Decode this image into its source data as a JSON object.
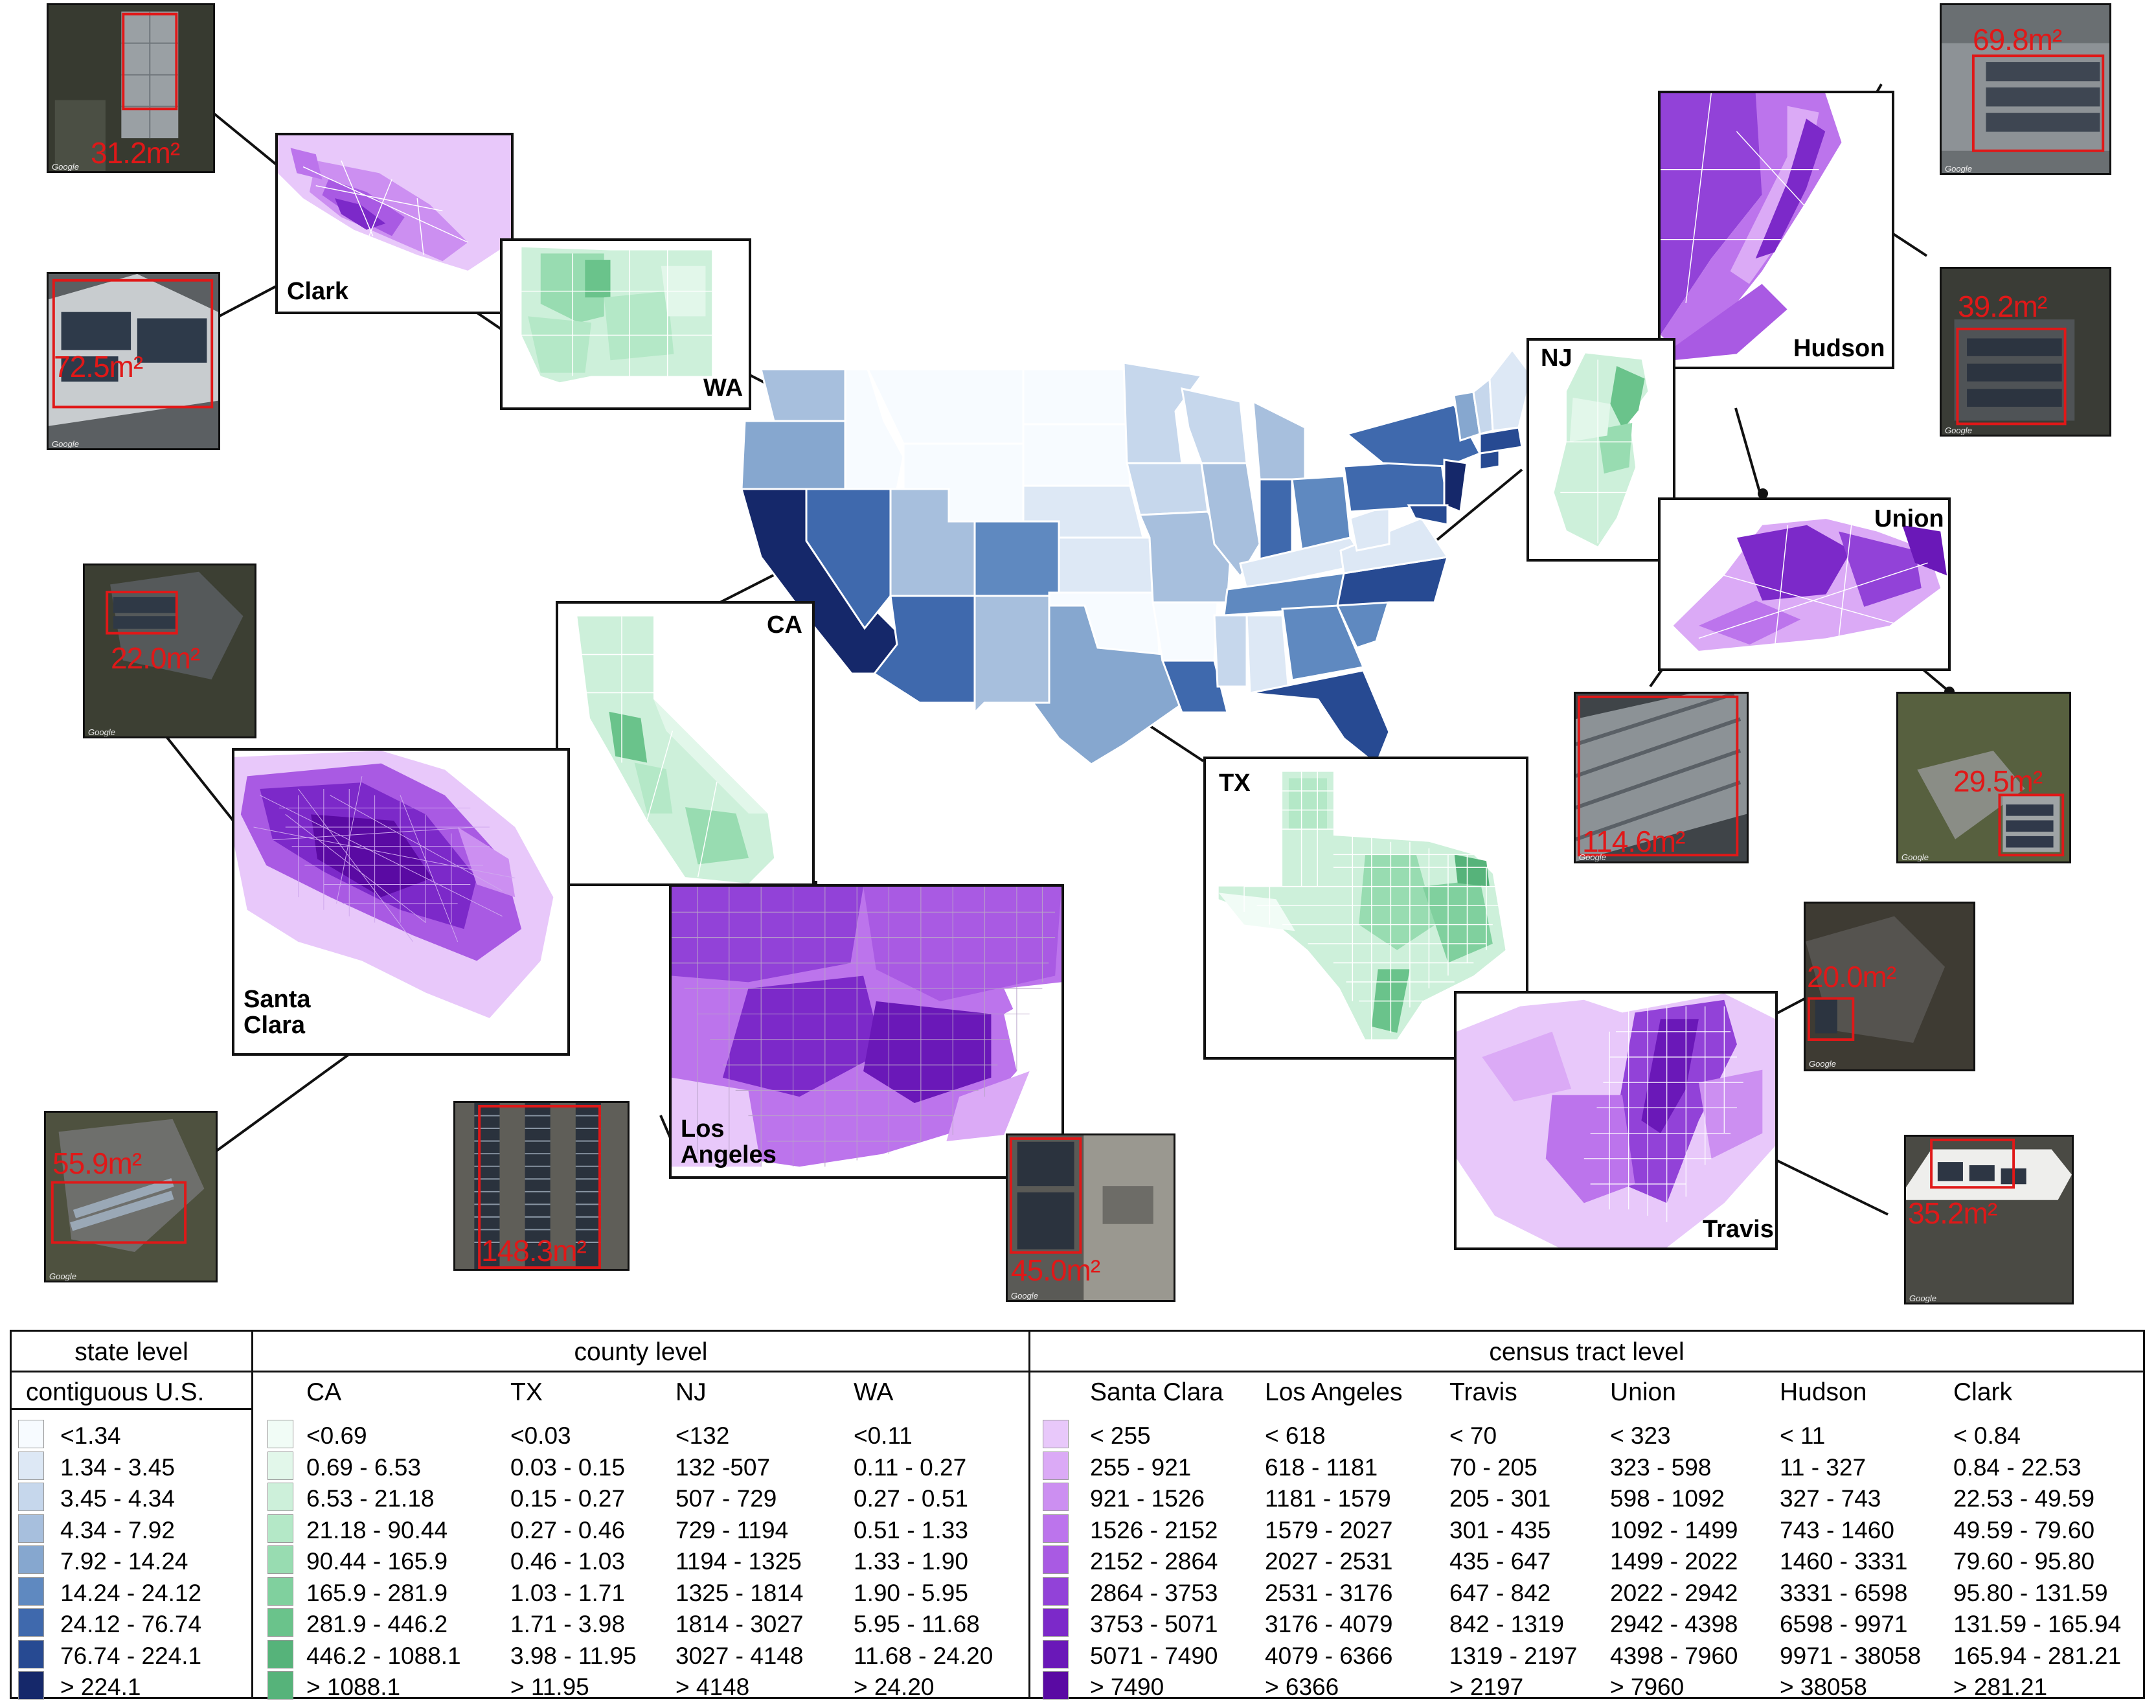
{
  "colors": {
    "state_scale": [
      "#f7fbff",
      "#dde8f5",
      "#c6d7ec",
      "#a7bfdd",
      "#86a7cf",
      "#5f89c0",
      "#3f69ad",
      "#274a92",
      "#15286a"
    ],
    "county_scale": [
      "#f1fcf6",
      "#e2f7ea",
      "#cdf0da",
      "#b4e8c7",
      "#98dcb1",
      "#80d09e",
      "#6ac38b",
      "#56b37a"
    ],
    "tract_scale": [
      "#e8c8fa",
      "#dbaaf6",
      "#cc8ff1",
      "#bc74ec",
      "#a95ae3",
      "#9242d8",
      "#7c29c9",
      "#6a18b8",
      "#5a0aa3"
    ],
    "area_label": "#e01818"
  },
  "map": {
    "insets": {
      "clark": "Clark",
      "wa": "WA",
      "hudson": "Hudson",
      "nj": "NJ",
      "union": "Union",
      "ca": "CA",
      "santa_clara": "Santa Clara",
      "los_angeles": "Los Angeles",
      "tx": "TX",
      "travis": "Travis"
    },
    "satellite_areas": {
      "clark_1": "31.2m²",
      "clark_2": "72.5m²",
      "hudson_1": "69.8m²",
      "hudson_2": "39.2m²",
      "union_1": "114.6m²",
      "union_2": "29.5m²",
      "santa_clara_1": "22.0m²",
      "santa_clara_2": "55.9m²",
      "los_angeles_1": "148.3m²",
      "los_angeles_2": "45.0m²",
      "travis_1": "20.0m²",
      "travis_2": "35.2m²"
    },
    "watermark": "Google"
  },
  "legend": {
    "state": {
      "header": "state level",
      "column": "contiguous U.S.",
      "ranges": [
        "<1.34",
        "1.34 - 3.45",
        "3.45 - 4.34",
        "4.34 - 7.92",
        "7.92 - 14.24",
        "14.24 - 24.12",
        "24.12 - 76.74",
        "76.74 - 224.1",
        "> 224.1"
      ]
    },
    "county": {
      "header": "county level",
      "columns": [
        {
          "name": "CA",
          "ranges": [
            "<0.69",
            "0.69 - 6.53",
            "6.53 - 21.18",
            "21.18 - 90.44",
            "90.44 - 165.9",
            "165.9 - 281.9",
            "281.9 - 446.2",
            "446.2 - 1088.1",
            "> 1088.1"
          ]
        },
        {
          "name": "TX",
          "ranges": [
            "<0.03",
            "0.03 - 0.15",
            "0.15 - 0.27",
            "0.27 - 0.46",
            "0.46 - 1.03",
            "1.03 - 1.71",
            "1.71 - 3.98",
            "3.98 - 11.95",
            "> 11.95"
          ]
        },
        {
          "name": "NJ",
          "ranges": [
            "<132",
            "132 -507",
            "507 - 729",
            "729 - 1194",
            "1194 - 1325",
            "1325 - 1814",
            "1814 - 3027",
            "3027 - 4148",
            "> 4148"
          ]
        },
        {
          "name": "WA",
          "ranges": [
            "<0.11",
            "0.11 - 0.27",
            "0.27 - 0.51",
            "0.51 - 1.33",
            "1.33 - 1.90",
            "1.90 - 5.95",
            "5.95 - 11.68",
            "11.68 - 24.20",
            "> 24.20"
          ]
        }
      ]
    },
    "tract": {
      "header": "census tract level",
      "columns": [
        {
          "name": "Santa Clara",
          "ranges": [
            "< 255",
            "255 - 921",
            "921 - 1526",
            "1526 - 2152",
            "2152 - 2864",
            "2864 - 3753",
            "3753 - 5071",
            "5071 - 7490",
            "> 7490"
          ]
        },
        {
          "name": "Los Angeles",
          "ranges": [
            "< 618",
            "618 - 1181",
            "1181 - 1579",
            "1579 - 2027",
            "2027 - 2531",
            "2531 - 3176",
            "3176 - 4079",
            "4079 - 6366",
            "> 6366"
          ]
        },
        {
          "name": "Travis",
          "ranges": [
            "< 70",
            "70 - 205",
            "205 - 301",
            "301 - 435",
            "435 - 647",
            "647 - 842",
            "842 - 1319",
            "1319 - 2197",
            "> 2197"
          ]
        },
        {
          "name": "Union",
          "ranges": [
            "< 323",
            "323 - 598",
            "598 - 1092",
            "1092 - 1499",
            "1499 - 2022",
            "2022 - 2942",
            "2942 - 4398",
            "4398 - 7960",
            "> 7960"
          ]
        },
        {
          "name": "Hudson",
          "ranges": [
            "< 11",
            "11 - 327",
            "327 - 743",
            "743 - 1460",
            "1460 - 3331",
            "3331 - 6598",
            "6598 - 9971",
            "9971 - 38058",
            "> 38058"
          ]
        },
        {
          "name": "Clark",
          "ranges": [
            "< 0.84",
            "0.84 - 22.53",
            "22.53 - 49.59",
            "49.59 - 79.60",
            "79.60 - 95.80",
            "95.80 - 131.59",
            "131.59 - 165.94",
            "165.94 - 281.21",
            "> 281.21"
          ]
        }
      ]
    }
  }
}
